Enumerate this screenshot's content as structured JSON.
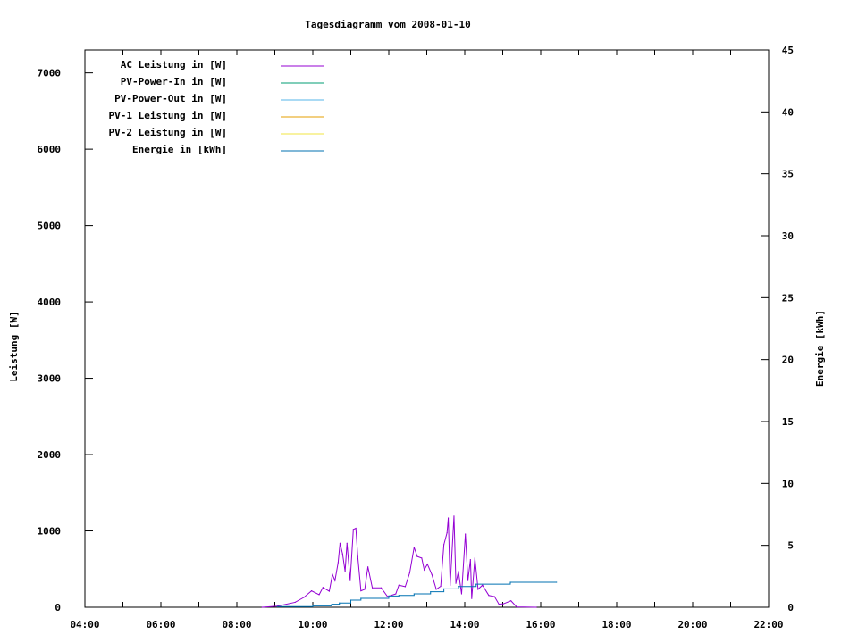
{
  "chart_data": {
    "type": "line",
    "title": "Tagesdiagramm vom 2008-01-10",
    "ylabel": "Leistung [W]",
    "y2label": "Energie [kWh]",
    "xlim": [
      "04:00",
      "22:00"
    ],
    "ylim": [
      0,
      7300
    ],
    "y2lim": [
      0,
      45
    ],
    "x_ticks": [
      "04:00",
      "06:00",
      "08:00",
      "10:00",
      "12:00",
      "14:00",
      "16:00",
      "18:00",
      "20:00",
      "22:00"
    ],
    "y_ticks": [
      0,
      1000,
      2000,
      3000,
      4000,
      5000,
      6000,
      7000
    ],
    "y2_ticks": [
      0,
      5,
      10,
      15,
      20,
      25,
      30,
      35,
      40,
      45
    ],
    "grid": false,
    "legend_position": "top-left",
    "series": [
      {
        "name": "AC Leistung in [W]",
        "color": "#9400d3",
        "axis": "left",
        "x": [
          "08:40",
          "09:04",
          "09:32",
          "09:46",
          "09:58",
          "10:10",
          "10:16",
          "10:26",
          "10:31",
          "10:35",
          "10:40",
          "10:43",
          "10:47",
          "10:51",
          "10:54",
          "10:59",
          "11:04",
          "11:08",
          "11:11",
          "11:16",
          "11:22",
          "11:27",
          "11:34",
          "11:48",
          "11:58",
          "12:11",
          "12:16",
          "12:26",
          "12:33",
          "12:40",
          "12:45",
          "12:52",
          "12:56",
          "13:01",
          "13:08",
          "13:15",
          "13:22",
          "13:27",
          "13:32",
          "13:34",
          "13:37",
          "13:43",
          "13:46",
          "13:50",
          "13:55",
          "14:01",
          "14:05",
          "14:09",
          "14:11",
          "14:16",
          "14:21",
          "14:28",
          "14:38",
          "14:47",
          "14:54",
          "15:01",
          "15:13",
          "15:22",
          "15:53"
        ],
        "values": [
          0,
          15,
          65,
          130,
          215,
          165,
          260,
          210,
          430,
          350,
          585,
          840,
          700,
          470,
          840,
          350,
          1020,
          1035,
          665,
          215,
          235,
          530,
          255,
          255,
          140,
          175,
          290,
          270,
          450,
          785,
          665,
          645,
          490,
          565,
          430,
          235,
          275,
          820,
          975,
          1170,
          290,
          1195,
          315,
          470,
          175,
          960,
          350,
          625,
          115,
          645,
          235,
          290,
          155,
          140,
          40,
          45,
          85,
          5,
          0
        ]
      },
      {
        "name": "PV-Power-In in [W]",
        "color": "#009e73",
        "axis": "left",
        "x": [],
        "values": []
      },
      {
        "name": "PV-Power-Out in [W]",
        "color": "#56b4e9",
        "axis": "left",
        "x": [],
        "values": []
      },
      {
        "name": "PV-1 Leistung in [W]",
        "color": "#e69f00",
        "axis": "left",
        "x": [],
        "values": []
      },
      {
        "name": "PV-2 Leistung in [W]",
        "color": "#f0e442",
        "axis": "left",
        "x": [],
        "values": []
      },
      {
        "name": "Energie in [kWh]",
        "color": "#0072b2",
        "axis": "right",
        "x": [
          "09:04",
          "10:00",
          "10:30",
          "10:42",
          "11:00",
          "11:16",
          "12:00",
          "12:16",
          "12:40",
          "13:06",
          "13:27",
          "13:50",
          "14:18",
          "15:12",
          "16:25"
        ],
        "values": [
          0.05,
          0.12,
          0.24,
          0.34,
          0.58,
          0.72,
          0.91,
          0.96,
          1.08,
          1.25,
          1.49,
          1.68,
          1.87,
          2.02,
          2.02
        ]
      }
    ]
  }
}
